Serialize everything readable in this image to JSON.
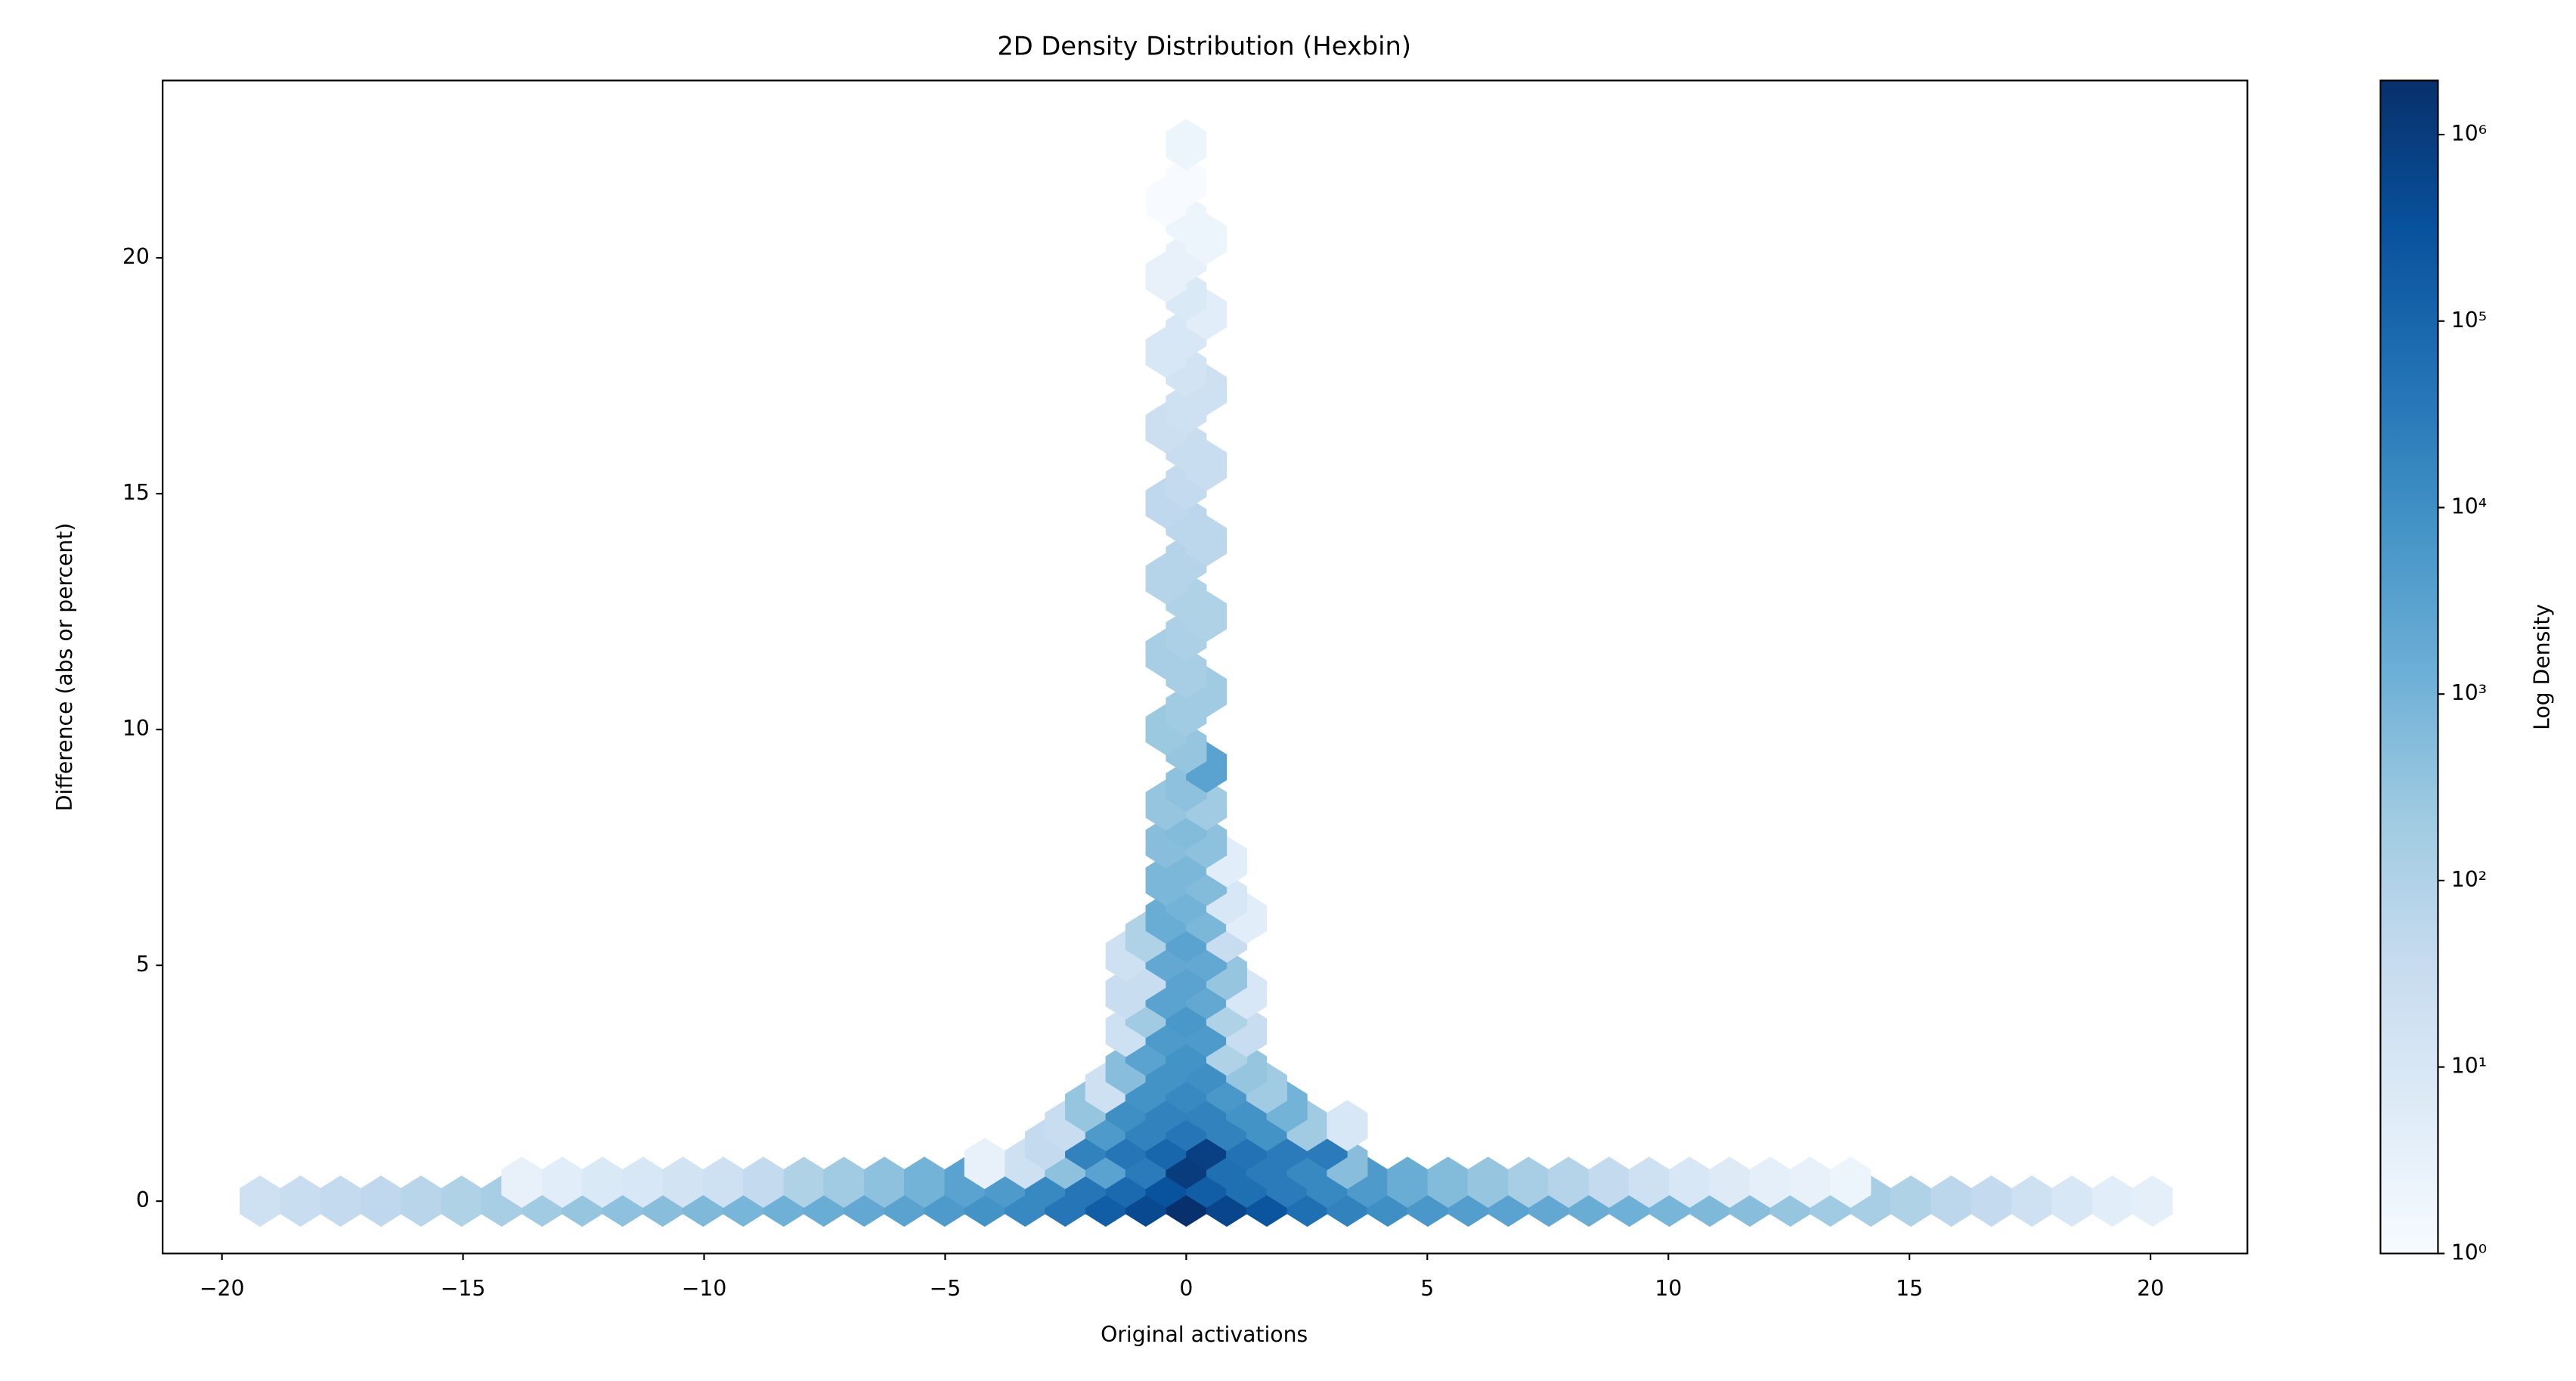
{
  "chart_data": {
    "type": "hexbin",
    "title": "2D Density Distribution (Hexbin)",
    "x_label": "Original activations",
    "y_label": "Difference (abs or percent)",
    "colorbar_label": "Log Density",
    "xlim": [
      -21.23,
      22.01
    ],
    "ylim": [
      -1.11,
      23.76
    ],
    "xticks": [
      {
        "value": -20,
        "label": "−20"
      },
      {
        "value": -15,
        "label": "−15"
      },
      {
        "value": -10,
        "label": "−10"
      },
      {
        "value": -5,
        "label": "−5"
      },
      0,
      5,
      10,
      15,
      20
    ],
    "yticks": [
      0,
      5,
      10,
      15,
      20
    ],
    "clim": [
      1,
      1950000
    ],
    "color_scale": "log",
    "cticks": [
      {
        "value": 1,
        "label": "10⁰"
      },
      {
        "value": 10,
        "label": "10¹"
      },
      {
        "value": 100,
        "label": "10²"
      },
      {
        "value": 1000,
        "label": "10³"
      },
      {
        "value": 10000,
        "label": "10⁴"
      },
      {
        "value": 100000,
        "label": "10⁵"
      },
      {
        "value": 1000000,
        "label": "10⁶"
      }
    ],
    "colormap": [
      "#f7fbff",
      "#deebf7",
      "#c6dbef",
      "#9ecae1",
      "#6baed6",
      "#4292c6",
      "#2171b5",
      "#08519c",
      "#08306b"
    ],
    "x": [
      -19.21,
      -18.37,
      -17.54,
      -16.7,
      -15.87,
      -15.03,
      -14.2,
      -13.36,
      -12.53,
      -11.69,
      -10.86,
      -10.02,
      -9.19,
      -8.35,
      -7.52,
      -6.68,
      -5.85,
      -5.01,
      -4.18,
      -3.34,
      -2.51,
      -1.67,
      -0.84,
      0,
      0.84,
      1.67,
      2.51,
      3.34,
      4.18,
      5.01,
      5.85,
      6.68,
      7.52,
      8.35,
      9.19,
      10.02,
      10.86,
      11.69,
      12.53,
      13.36,
      14.2,
      15.03,
      15.87,
      16.7,
      17.54,
      18.37,
      19.21,
      20.04,
      -13.78,
      -12.94,
      -12.11,
      -11.27,
      -10.44,
      -9.6,
      -8.77,
      -7.93,
      -7.1,
      -6.26,
      -5.43,
      -4.59,
      -3.76,
      -2.92,
      -2.09,
      -1.25,
      -0.42,
      0.42,
      1.25,
      2.09,
      2.92,
      3.76,
      4.59,
      5.43,
      6.26,
      7.1,
      7.93,
      8.77,
      9.6,
      10.44,
      11.27,
      12.11,
      12.94,
      13.78,
      -4.18,
      -3.34,
      -2.51,
      -1.67,
      -0.84,
      0,
      0.84,
      1.67,
      2.51,
      3.34,
      -2.92,
      -2.09,
      -1.25,
      -0.42,
      0.42,
      1.25,
      2.09,
      2.92,
      -2.51,
      -1.67,
      -0.84,
      0,
      0.84,
      1.67,
      2.51,
      3.34,
      -2.09,
      -1.25,
      -0.42,
      0.42,
      1.25,
      2.09,
      -1.67,
      -0.84,
      0,
      0.84,
      1.67,
      -1.25,
      -0.42,
      0.42,
      1.25,
      -0.84,
      0,
      0.84,
      -1.25,
      -0.42,
      0.42,
      1.25,
      -0.84,
      0,
      0.84,
      -1.25,
      -0.42,
      0.42,
      1.25,
      -0.84,
      0,
      0.84,
      -1.25,
      -0.42,
      0.42,
      -0.84,
      0,
      0.84,
      -0.42,
      0.42,
      1.25,
      0,
      0.84,
      -0.42,
      0.42,
      0,
      0.84,
      -0.42,
      0.42,
      0,
      -0.42,
      0.42,
      0,
      0.42,
      0,
      -0.42,
      0,
      0.42,
      0,
      -0.42,
      0,
      0.42,
      0,
      -0.42,
      0,
      0.42,
      0,
      -0.42,
      0,
      0.42,
      0,
      -0.42,
      0,
      0.42,
      0,
      -0.42,
      0,
      0.42,
      0,
      -0.42,
      0,
      0.42,
      0,
      -0.42,
      0,
      0
    ],
    "y": [
      0,
      0,
      0,
      0,
      0,
      0,
      0,
      0,
      0,
      0,
      0,
      0,
      0,
      0,
      0,
      0,
      0,
      0,
      0,
      0,
      0,
      0,
      0,
      0,
      0,
      0,
      0,
      0,
      0,
      0,
      0,
      0,
      0,
      0,
      0,
      0,
      0,
      0,
      0,
      0,
      0,
      0,
      0,
      0,
      0,
      0,
      0,
      0,
      0.4,
      0.4,
      0.4,
      0.4,
      0.4,
      0.4,
      0.4,
      0.4,
      0.4,
      0.4,
      0.4,
      0.4,
      0.4,
      0.4,
      0.4,
      0.4,
      0.4,
      0.4,
      0.4,
      0.4,
      0.4,
      0.4,
      0.4,
      0.4,
      0.4,
      0.4,
      0.4,
      0.4,
      0.4,
      0.4,
      0.4,
      0.4,
      0.4,
      0.4,
      0.8,
      0.8,
      0.8,
      0.8,
      0.8,
      0.8,
      0.8,
      0.8,
      0.8,
      0.8,
      1.2,
      1.2,
      1.2,
      1.2,
      1.2,
      1.2,
      1.2,
      1.2,
      1.6,
      1.6,
      1.6,
      1.6,
      1.6,
      1.6,
      1.6,
      1.6,
      2,
      2,
      2,
      2,
      2,
      2,
      2.4,
      2.4,
      2.4,
      2.4,
      2.4,
      2.8,
      2.8,
      2.8,
      2.8,
      3.2,
      3.2,
      3.2,
      3.6,
      3.6,
      3.6,
      3.6,
      4,
      4,
      4,
      4.4,
      4.4,
      4.4,
      4.4,
      4.8,
      4.8,
      4.8,
      5.2,
      5.2,
      5.2,
      5.6,
      5.6,
      5.6,
      6,
      6,
      6,
      6.4,
      6.4,
      6.8,
      6.8,
      7.2,
      7.2,
      7.6,
      7.6,
      8,
      8.4,
      8.4,
      8.8,
      9.2,
      9.6,
      10,
      10.4,
      10.8,
      11.2,
      11.6,
      12,
      12.4,
      12.8,
      13.2,
      13.6,
      14,
      14.4,
      14.8,
      15.2,
      15.6,
      16,
      16.4,
      16.8,
      17.2,
      17.6,
      18,
      18.4,
      18.8,
      19.2,
      19.6,
      20,
      20.4,
      20.8,
      21.2,
      21.6,
      22.4
    ],
    "counts": [
      20,
      30,
      40,
      50,
      70,
      100,
      150,
      200,
      300,
      400,
      500,
      700,
      900,
      1200,
      1500,
      2000,
      3000,
      5000,
      8000,
      15000,
      40000,
      150000,
      500000,
      1900000,
      600000,
      250000,
      60000,
      20000,
      10000,
      6000,
      4000,
      3000,
      2000,
      1500,
      1200,
      900,
      700,
      500,
      300,
      200,
      150,
      100,
      60,
      40,
      20,
      10,
      5,
      4,
      3,
      5,
      8,
      10,
      15,
      20,
      40,
      100,
      200,
      400,
      1000,
      3000,
      5000,
      15000,
      40000,
      80000,
      300000,
      150000,
      60000,
      30000,
      15000,
      5000,
      1500,
      600,
      300,
      150,
      80,
      40,
      20,
      10,
      6,
      4,
      3,
      2,
      3,
      20,
      400,
      3000,
      30000,
      1000000,
      60000,
      30000,
      15000,
      500,
      40,
      20000,
      40000,
      100000,
      800000,
      50000,
      30000,
      30000,
      30,
      5000,
      20000,
      40000,
      20000,
      8000,
      200,
      10,
      300,
      10000,
      20000,
      20000,
      8000,
      1000,
      20,
      8000,
      15000,
      6000,
      200,
      500,
      8000,
      10000,
      300,
      3000,
      8000,
      100,
      20,
      5000,
      5000,
      30,
      200,
      6000,
      100,
      30,
      3000,
      2000,
      10,
      30,
      3000,
      300,
      20,
      2000,
      2000,
      100,
      3000,
      30,
      1500,
      800,
      5,
      1000,
      10,
      800,
      600,
      800,
      5,
      500,
      400,
      600,
      300,
      200,
      400,
      3000,
      300,
      250,
      200,
      200,
      150,
      150,
      120,
      100,
      100,
      80,
      80,
      60,
      60,
      50,
      40,
      30,
      30,
      25,
      20,
      20,
      15,
      10,
      10,
      5,
      8,
      3,
      3,
      2,
      2,
      1,
      1,
      2
    ]
  }
}
